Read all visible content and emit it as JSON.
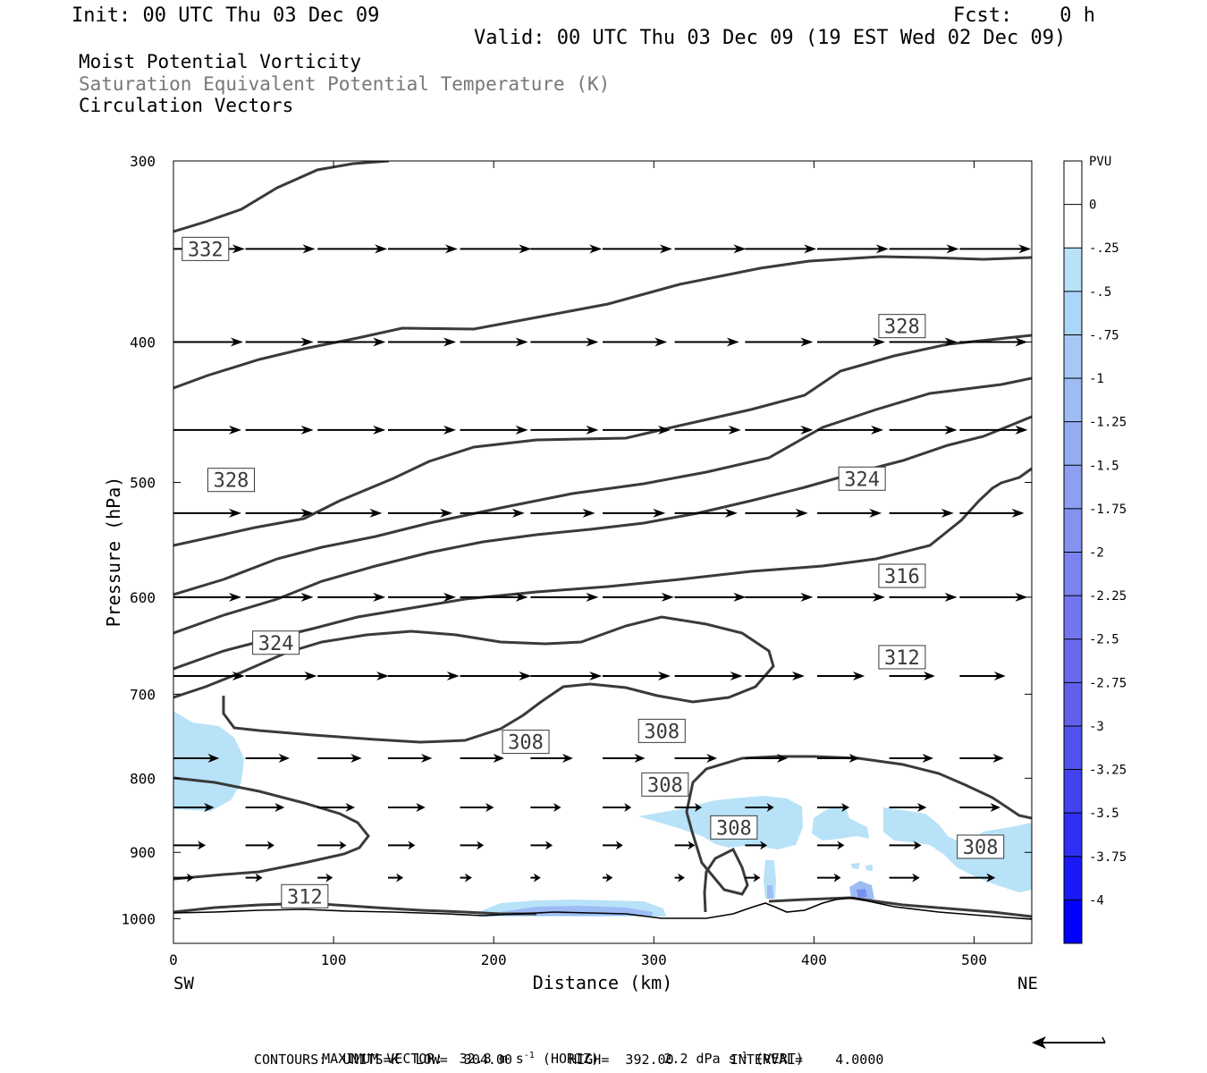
{
  "header": {
    "init": "Init: 00 UTC Thu 03 Dec 09",
    "fcst": "Fcst:    0 h",
    "valid": "Valid: 00 UTC Thu 03 Dec 09 (19 EST Wed 02 Dec 09)",
    "field1": "Moist Potential Vorticity",
    "field2": "Saturation Equivalent Potential Temperature (K)",
    "field3": "Circulation Vectors"
  },
  "footer": {
    "max_vector_label": "MAXIMUM VECTOR:",
    "horiz_value": "32.8 m s",
    "horiz_unit": "(HORIZ)",
    "vert_value": "2.2 dPa s",
    "vert_unit": "(VERT)",
    "exponent": "-1",
    "contours_line": "CONTOURS:  UNITS=K  LOW=  304.00       HIGH=  392.00       INTERVAL=    4.0000"
  },
  "colors": {
    "contour": "#3a3a3a",
    "shade_light": "#b8e2f8",
    "shade_mid": "#9dbcf4",
    "shade_dark": "#7b8ff0",
    "vector": "#000000"
  },
  "chart_data": {
    "type": "cross-section",
    "title": "Moist Potential Vorticity",
    "xlabel": "Distance (km)",
    "ylabel": "Pressure (hPa)",
    "xlim": [
      0,
      536
    ],
    "ylim": [
      300,
      1040
    ],
    "y_scale": "log-pressure",
    "x_ticks": [
      0,
      100,
      200,
      300,
      400,
      500
    ],
    "y_ticks": [
      300,
      400,
      500,
      600,
      700,
      800,
      900,
      1000
    ],
    "x_end_labels": [
      "SW",
      "NE"
    ],
    "colorbar": {
      "label": "PVU",
      "levels": [
        0,
        -0.25,
        -0.5,
        -0.75,
        -1,
        -1.25,
        -1.5,
        -1.75,
        -2,
        -2.25,
        -2.5,
        -2.75,
        -3,
        -3.25,
        -3.5,
        -3.75,
        -4
      ],
      "tick_labels": [
        "0",
        "-.25",
        "-.5",
        "-.75",
        "-1",
        "-1.25",
        "-1.5",
        "-1.75",
        "-2",
        "-2.25",
        "-2.5",
        "-2.75",
        "-3",
        "-3.25",
        "-3.5",
        "-3.75",
        "-4"
      ],
      "colors": [
        "#ffffff",
        "#ffffff",
        "#b8e2f8",
        "#aad6f7",
        "#a5c8f6",
        "#9dbcf4",
        "#94adf2",
        "#8c9ff1",
        "#8492f0",
        "#7b84ee",
        "#7276ed",
        "#6a69ec",
        "#6060eb",
        "#5252ee",
        "#4242f0",
        "#3030f4",
        "#1a1af8",
        "#0000ff"
      ]
    },
    "contour_units": "K",
    "contour_low": 304.0,
    "contour_high": 392.0,
    "contour_interval": 4.0,
    "contour_labels": [
      {
        "value": "332",
        "x": 20,
        "p": 345
      },
      {
        "value": "328",
        "x": 36,
        "p": 498
      },
      {
        "value": "328",
        "x": 455,
        "p": 390
      },
      {
        "value": "324",
        "x": 64,
        "p": 645
      },
      {
        "value": "324",
        "x": 430,
        "p": 497
      },
      {
        "value": "316",
        "x": 455,
        "p": 580
      },
      {
        "value": "312",
        "x": 455,
        "p": 660
      },
      {
        "value": "312",
        "x": 82,
        "p": 965
      },
      {
        "value": "308",
        "x": 220,
        "p": 755
      },
      {
        "value": "308",
        "x": 305,
        "p": 742
      },
      {
        "value": "308",
        "x": 307,
        "p": 808
      },
      {
        "value": "308",
        "x": 350,
        "p": 865
      },
      {
        "value": "308",
        "x": 504,
        "p": 892
      }
    ],
    "vectors": {
      "x": [
        0,
        45,
        90,
        134,
        179,
        223,
        268,
        313,
        357,
        402,
        447,
        491,
        536
      ],
      "rows": [
        {
          "p": 345,
          "u": [
            42,
            41,
            41,
            41,
            42,
            42,
            41,
            42,
            42,
            42,
            41,
            42,
            42
          ]
        },
        {
          "p": 400,
          "u": [
            41,
            40,
            40,
            40,
            40,
            40,
            38,
            38,
            40,
            40,
            40,
            40,
            40
          ]
        },
        {
          "p": 460,
          "u": [
            40,
            40,
            40,
            40,
            40,
            40,
            40,
            39,
            40,
            39,
            40,
            40,
            40
          ]
        },
        {
          "p": 525,
          "u": [
            40,
            40,
            38,
            38,
            38,
            38,
            37,
            37,
            37,
            38,
            38,
            38,
            40
          ]
        },
        {
          "p": 600,
          "u": [
            40,
            40,
            40,
            40,
            40,
            40,
            42,
            42,
            40,
            40,
            40,
            40,
            40
          ]
        },
        {
          "p": 680,
          "u": [
            42,
            42,
            42,
            42,
            42,
            42,
            40,
            40,
            35,
            28,
            27,
            27,
            27
          ]
        },
        {
          "p": 775,
          "u": [
            27,
            26,
            26,
            26,
            26,
            25,
            25,
            25,
            25,
            25,
            26,
            26,
            26
          ]
        },
        {
          "p": 838,
          "u": [
            24,
            23,
            22,
            22,
            20,
            18,
            17,
            16,
            17,
            19,
            22,
            24,
            24
          ]
        },
        {
          "p": 890,
          "u": [
            19,
            17,
            17,
            16,
            14,
            13,
            12,
            12,
            13,
            16,
            19,
            21,
            21
          ]
        },
        {
          "p": 937,
          "u": [
            12,
            10,
            9,
            9,
            7,
            6,
            6,
            6,
            9,
            14,
            18,
            21,
            21
          ]
        }
      ]
    },
    "max_vector": {
      "horiz": "32.8 m s-1",
      "vert": "2.2 dPa s-1"
    }
  }
}
